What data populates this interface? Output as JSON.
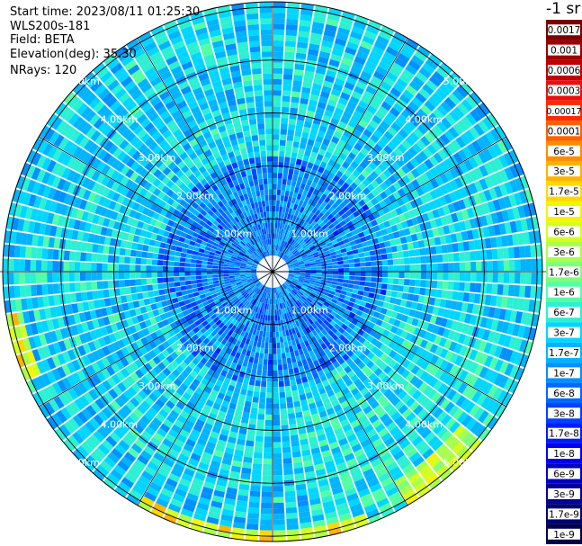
{
  "header": {
    "start_time": "Start time: 2023/08/11 01:25:30",
    "instrument": "WLS200s-181",
    "field": "Field: BETA",
    "elevation": "Elevation(deg): 35.30",
    "nrays": "NRays: 120"
  },
  "colorbar": {
    "unit": "-1 sr",
    "labels": [
      "0.0017",
      "0.001",
      "0.0006",
      "0.0003",
      "0.00017",
      "0.0001",
      "6e-5",
      "3e-5",
      "1.7e-5",
      "1e-5",
      "6e-6",
      "3e-6",
      "1.7e-6",
      "1e-6",
      "6e-7",
      "3e-7",
      "1.7e-7",
      "1e-7",
      "6e-8",
      "3e-8",
      "1.7e-8",
      "1e-8",
      "6e-9",
      "3e-9",
      "1.7e-9",
      "1e-9"
    ],
    "colors": [
      "#7a0000",
      "#9a0000",
      "#c00000",
      "#e81010",
      "#ff2a00",
      "#ff6000",
      "#ff8c00",
      "#ffb300",
      "#ffd800",
      "#f4f400",
      "#d4ff20",
      "#a8ff4c",
      "#7dff7a",
      "#52ffa6",
      "#2bf0d4",
      "#00d6ff",
      "#00b4ff",
      "#0090ff",
      "#0068ff",
      "#0040ff",
      "#001cff",
      "#0000ee",
      "#0000c4",
      "#00009a",
      "#000070",
      "#00004a"
    ]
  },
  "chart_data": {
    "type": "heatmap",
    "projection": "polar PPI",
    "field": "BETA",
    "nrays": 120,
    "range_rings_km": [
      1,
      2,
      3,
      4,
      5
    ],
    "ring_labels": [
      "1.00km",
      "2.00km",
      "3.00km",
      "4.00km",
      "5.00km"
    ],
    "scale": "log",
    "value_range": [
      1e-09,
      0.0017
    ],
    "typical_value": "1e-7 to 6e-7",
    "high_value_regions": [
      {
        "location": "south edge, ~5.0–5.2 km",
        "values": "1.7e-6 to 3e-5"
      },
      {
        "location": "west edge, ~5.0 km",
        "values": "1.7e-6 to 1.7e-5"
      },
      {
        "location": "southeast edge, ~5.0 km",
        "values": "1e-6 to 6e-6"
      }
    ]
  }
}
